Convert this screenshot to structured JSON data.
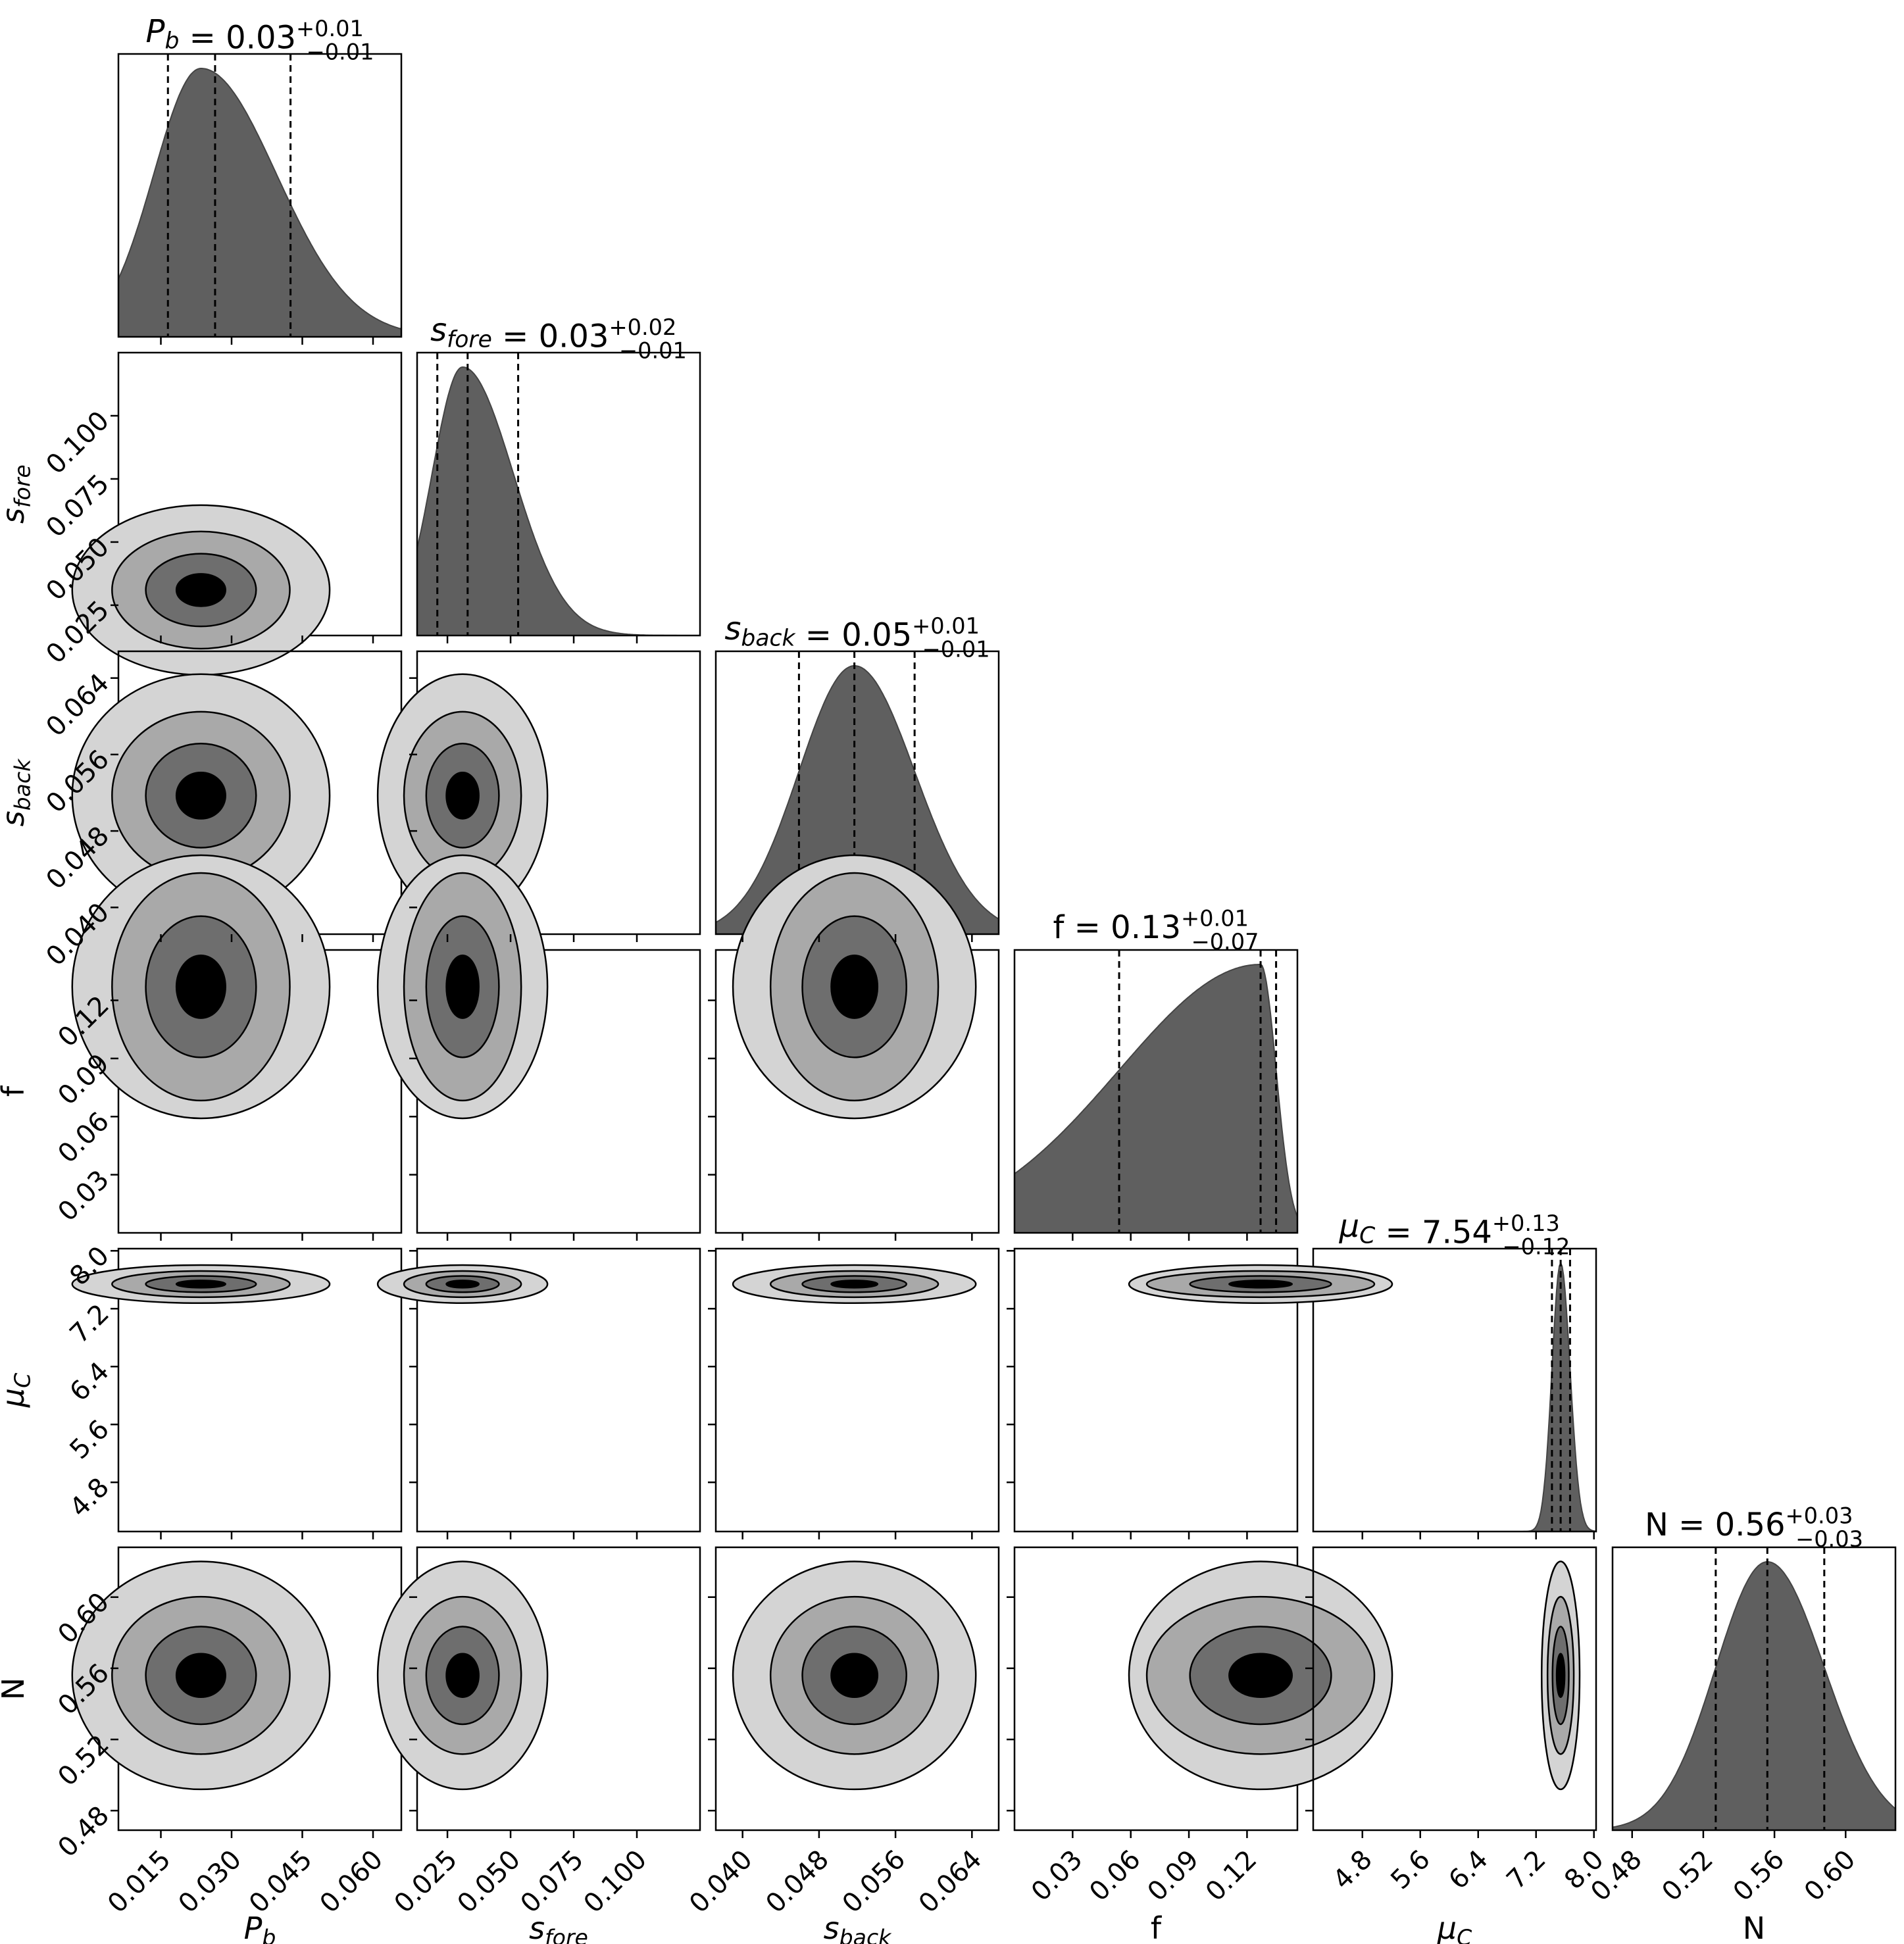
{
  "chart_data": {
    "type": "corner",
    "parameters": [
      {
        "key": "Pb",
        "label": "P_b",
        "ticks": [
          0.015,
          0.03,
          0.045,
          0.06
        ],
        "tick_labels": [
          "0.015",
          "0.030",
          "0.045",
          "0.060"
        ],
        "range": [
          0.006,
          0.066
        ],
        "title": {
          "name": "P_b",
          "value": "0.03",
          "plus": "+0.01",
          "minus": "−0.01"
        },
        "quantiles": [
          0.0165,
          0.0265,
          0.0425
        ],
        "hist_peak": 0.0235
      },
      {
        "key": "sfore",
        "label": "s_fore",
        "ticks": [
          0.025,
          0.05,
          0.075,
          0.1
        ],
        "tick_labels": [
          "0.025",
          "0.050",
          "0.075",
          "0.100"
        ],
        "range": [
          0.013,
          0.125
        ],
        "title": {
          "name": "s_fore",
          "value": "0.03",
          "plus": "+0.02",
          "minus": "−0.01"
        },
        "quantiles": [
          0.021,
          0.033,
          0.053
        ],
        "hist_peak": 0.031
      },
      {
        "key": "sback",
        "label": "s_back",
        "ticks": [
          0.04,
          0.048,
          0.056,
          0.064
        ],
        "tick_labels": [
          "0.040",
          "0.048",
          "0.056",
          "0.064"
        ],
        "range": [
          0.0372,
          0.0668
        ],
        "title": {
          "name": "s_back",
          "value": "0.05",
          "plus": "+0.01",
          "minus": "−0.01"
        },
        "quantiles": [
          0.0459,
          0.0517,
          0.058
        ],
        "hist_peak": 0.0517
      },
      {
        "key": "f",
        "label": "f",
        "ticks": [
          0.03,
          0.06,
          0.09,
          0.12
        ],
        "tick_labels": [
          "0.03",
          "0.06",
          "0.09",
          "0.12"
        ],
        "range": [
          0.0,
          0.146
        ],
        "title": {
          "name": "f",
          "value": "0.13",
          "plus": "+0.01",
          "minus": "−0.07"
        },
        "quantiles": [
          0.054,
          0.127,
          0.135
        ],
        "hist_peak": 0.127
      },
      {
        "key": "muC",
        "label": "μ_C",
        "ticks": [
          4.8,
          5.6,
          6.4,
          7.2,
          8.0
        ],
        "tick_labels": [
          "4.8",
          "5.6",
          "6.4",
          "7.2",
          "8.0"
        ],
        "range": [
          4.12,
          8.03
        ],
        "title": {
          "name": "μ_C",
          "value": "7.54",
          "plus": "+0.13",
          "minus": "−0.12"
        },
        "quantiles": [
          7.42,
          7.54,
          7.67
        ],
        "hist_peak": 7.54
      },
      {
        "key": "N",
        "label": "N",
        "ticks": [
          0.48,
          0.52,
          0.56,
          0.6
        ],
        "tick_labels": [
          "0.48",
          "0.52",
          "0.56",
          "0.60"
        ],
        "range": [
          0.469,
          0.628
        ],
        "title": {
          "name": "N",
          "value": "0.56",
          "plus": "+0.03",
          "minus": "−0.03"
        },
        "quantiles": [
          0.527,
          0.556,
          0.588
        ],
        "hist_peak": 0.556
      }
    ],
    "contour_fill_colors": [
      "#d4d4d4",
      "#a9a9a9",
      "#6e6e6e",
      "#000000"
    ],
    "hist_color": "#5f5f5f"
  }
}
